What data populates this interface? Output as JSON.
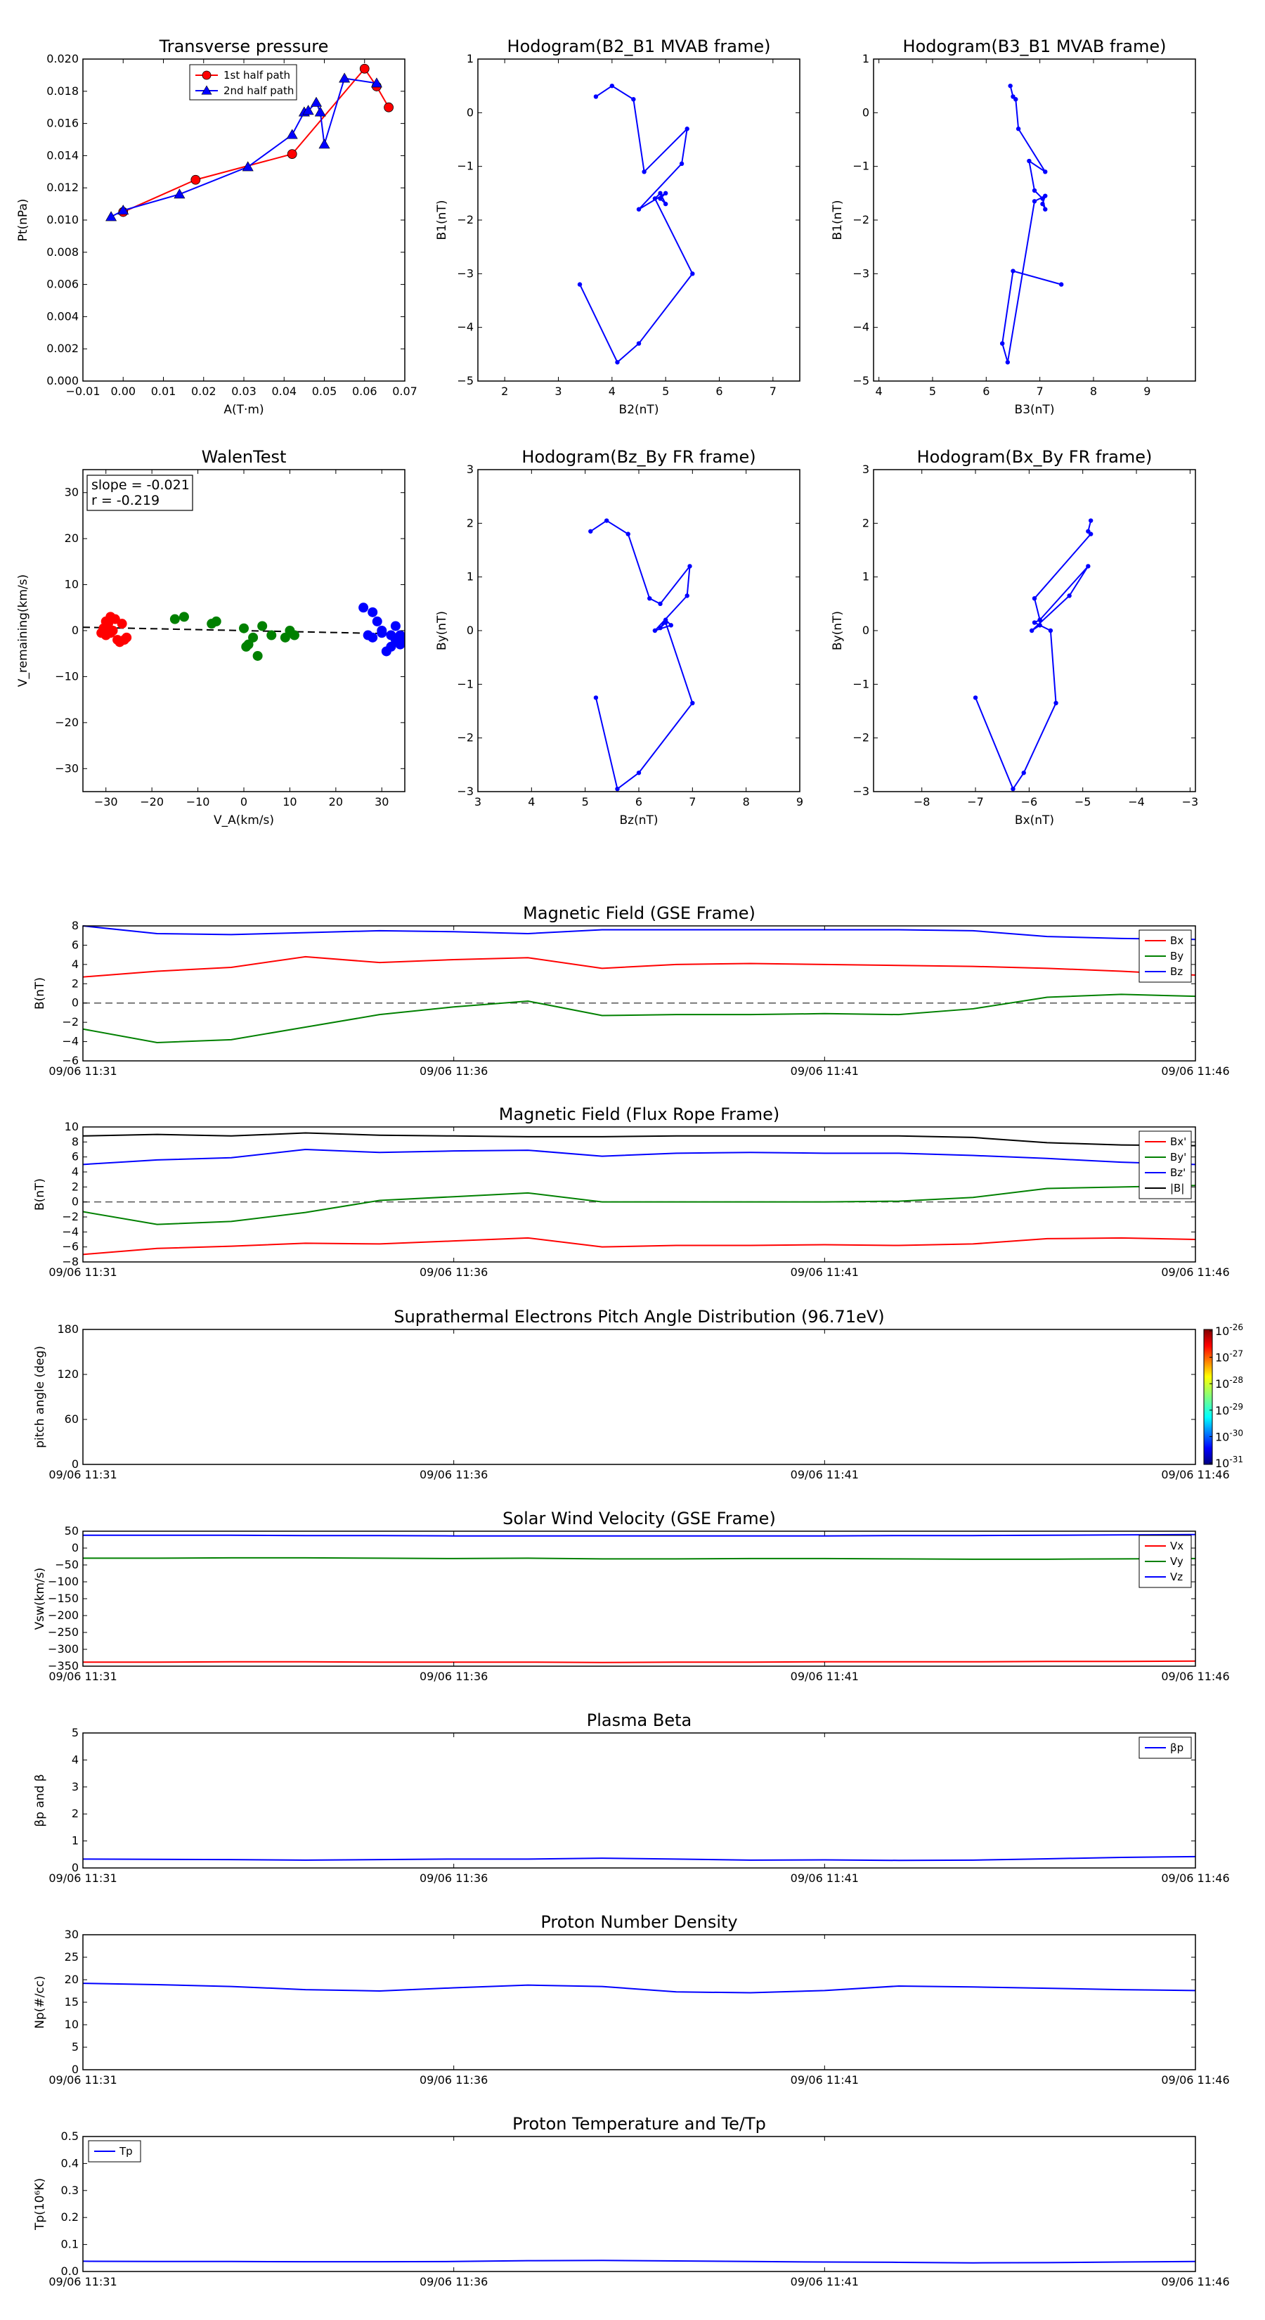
{
  "colors": {
    "red": "#ff0000",
    "green": "#008000",
    "blue": "#0000ff",
    "black": "#000000",
    "dark_red": "#cc0000",
    "dark_blue": "#0000aa",
    "navy": "#00008b"
  },
  "chart_data": [
    {
      "type": "line",
      "title": "Transverse pressure",
      "xlabel": "A(T·m)",
      "ylabel": "Pt(nPa)",
      "xlim": [
        -0.01,
        0.07
      ],
      "ylim": [
        0.0,
        0.02
      ],
      "xticks": [
        "−0.01",
        "0.00",
        "0.01",
        "0.02",
        "0.03",
        "0.04",
        "0.05",
        "0.06",
        "0.07"
      ],
      "yticks": [
        "0.000",
        "0.002",
        "0.004",
        "0.006",
        "0.008",
        "0.010",
        "0.012",
        "0.014",
        "0.016",
        "0.018",
        "0.020"
      ],
      "legend_placement": "top-center",
      "series": [
        {
          "name": "1st half path",
          "color": "red",
          "marker": "circle",
          "x": [
            0.0,
            0.018,
            0.042,
            0.06,
            0.063,
            0.066
          ],
          "y": [
            0.0105,
            0.0125,
            0.0141,
            0.0194,
            0.0183,
            0.017
          ]
        },
        {
          "name": "2nd half path",
          "color": "blue",
          "marker": "triangle",
          "x": [
            -0.003,
            0.0,
            0.014,
            0.031,
            0.042,
            0.045,
            0.046,
            0.048,
            0.049,
            0.05,
            0.055,
            0.063
          ],
          "y": [
            0.0102,
            0.0106,
            0.0116,
            0.0133,
            0.0153,
            0.0167,
            0.0168,
            0.0173,
            0.0167,
            0.0147,
            0.0188,
            0.0185
          ]
        }
      ]
    },
    {
      "type": "line",
      "title": "Hodogram(B2_B1 MVAB frame)",
      "xlabel": "B2(nT)",
      "ylabel": "B1(nT)",
      "xlim": [
        1.5,
        7.5
      ],
      "ylim": [
        -5,
        1
      ],
      "xticks": [
        "2",
        "3",
        "4",
        "5",
        "6",
        "7"
      ],
      "yticks": [
        "−5",
        "−4",
        "−3",
        "−2",
        "−1",
        "0",
        "1"
      ],
      "series": [
        {
          "color": "blue",
          "marker": "dot",
          "x": [
            3.4,
            4.1,
            4.5,
            5.5,
            4.8,
            4.9,
            5.0,
            4.9,
            5.0,
            4.5,
            5.3,
            5.4,
            4.6,
            4.4,
            4.0,
            3.7
          ],
          "y": [
            -3.2,
            -4.65,
            -4.3,
            -3.0,
            -1.6,
            -1.5,
            -1.7,
            -1.6,
            -1.5,
            -1.8,
            -0.95,
            -0.3,
            -1.1,
            0.25,
            0.5,
            0.3
          ]
        }
      ]
    },
    {
      "type": "line",
      "title": "Hodogram(B3_B1 MVAB frame)",
      "xlabel": "B3(nT)",
      "ylabel": "B1(nT)",
      "xlim": [
        3.9,
        9.9
      ],
      "ylim": [
        -5,
        1
      ],
      "xticks": [
        "4",
        "5",
        "6",
        "7",
        "8",
        "9"
      ],
      "yticks": [
        "−5",
        "−4",
        "−3",
        "−2",
        "−1",
        "0",
        "1"
      ],
      "series": [
        {
          "color": "blue",
          "marker": "dot",
          "x": [
            7.4,
            6.5,
            6.3,
            6.4,
            6.9,
            7.1,
            7.05,
            7.1,
            7.05,
            6.9,
            6.8,
            7.1,
            6.6,
            6.55,
            6.5,
            6.45
          ],
          "y": [
            -3.2,
            -2.95,
            -4.3,
            -4.65,
            -1.65,
            -1.55,
            -1.7,
            -1.8,
            -1.6,
            -1.45,
            -0.9,
            -1.1,
            -0.3,
            0.25,
            0.3,
            0.5
          ]
        }
      ]
    },
    {
      "type": "scatter",
      "title": "WalenTest",
      "xlabel": "V_A(km/s)",
      "ylabel": "V_remaining(km/s)",
      "xlim": [
        -35,
        35
      ],
      "ylim": [
        -35,
        35
      ],
      "xticks": [
        "−30",
        "−20",
        "−10",
        "0",
        "10",
        "20",
        "30"
      ],
      "yticks": [
        "−30",
        "−20",
        "−10",
        "0",
        "10",
        "20",
        "30"
      ],
      "annotations": [
        "slope = -0.021",
        "r = -0.219"
      ],
      "fit_line": {
        "slope": -0.021,
        "intercept": 0.0,
        "style": "dashed"
      },
      "series": [
        {
          "color": "red",
          "x": [
            -31,
            -30.5,
            -30,
            -29.5,
            -29,
            -28.5,
            -30,
            -29,
            -28,
            -27.5,
            -27,
            -26.5,
            -26,
            -25.5,
            -30.5,
            -29.5
          ],
          "y": [
            -0.5,
            0.5,
            -1.0,
            1.5,
            3.0,
            0.0,
            2.0,
            -0.5,
            2.5,
            -2.0,
            -2.5,
            1.5,
            -2.0,
            -1.5,
            0.5,
            -0.5
          ]
        },
        {
          "color": "green",
          "x": [
            -15,
            -13,
            -7,
            -6,
            0,
            0.5,
            1,
            2,
            3,
            4,
            6,
            9,
            10,
            11
          ],
          "y": [
            2.5,
            3.0,
            1.5,
            2.0,
            0.5,
            -3.5,
            -3.0,
            -1.5,
            -5.5,
            1.0,
            -1.0,
            -1.5,
            0.0,
            -1.0
          ]
        },
        {
          "color": "blue",
          "x": [
            26,
            27,
            28,
            29,
            30,
            31,
            32,
            33,
            34,
            35,
            28,
            30,
            32,
            34,
            33
          ],
          "y": [
            5.0,
            -1.0,
            4.0,
            2.0,
            0.0,
            -4.5,
            -1.0,
            1.0,
            -3.0,
            -2.5,
            -1.5,
            -0.5,
            -3.5,
            -1.0,
            -2.0
          ]
        }
      ]
    },
    {
      "type": "line",
      "title": "Hodogram(Bz_By FR frame)",
      "xlabel": "Bz(nT)",
      "ylabel": "By(nT)",
      "xlim": [
        3,
        9
      ],
      "ylim": [
        -3,
        3
      ],
      "xticks": [
        "3",
        "4",
        "5",
        "6",
        "7",
        "8",
        "9"
      ],
      "yticks": [
        "−3",
        "−2",
        "−1",
        "0",
        "1",
        "2",
        "3"
      ],
      "series": [
        {
          "color": "blue",
          "marker": "dot",
          "x": [
            5.2,
            5.6,
            6.0,
            7.0,
            6.5,
            6.4,
            6.5,
            6.6,
            6.3,
            6.9,
            6.95,
            6.4,
            6.2,
            5.8,
            5.4,
            5.1
          ],
          "y": [
            -1.25,
            -2.95,
            -2.65,
            -1.35,
            0.15,
            0.05,
            0.2,
            0.1,
            0.0,
            0.65,
            1.2,
            0.5,
            0.6,
            1.8,
            2.05,
            1.85
          ]
        }
      ]
    },
    {
      "type": "line",
      "title": "Hodogram(Bx_By FR frame)",
      "xlabel": "Bx(nT)",
      "ylabel": "By(nT)",
      "xlim": [
        -8.9,
        -2.9
      ],
      "ylim": [
        -3,
        3
      ],
      "xticks": [
        "−8",
        "−7",
        "−6",
        "−5",
        "−4",
        "−3"
      ],
      "yticks": [
        "−3",
        "−2",
        "−1",
        "0",
        "1",
        "2",
        "3"
      ],
      "series": [
        {
          "color": "blue",
          "marker": "dot",
          "x": [
            -7.0,
            -6.3,
            -6.1,
            -5.5,
            -5.6,
            -5.9,
            -5.8,
            -5.8,
            -5.95,
            -5.25,
            -4.9,
            -5.8,
            -5.9,
            -4.85,
            -4.9,
            -4.85
          ],
          "y": [
            -1.25,
            -2.95,
            -2.65,
            -1.35,
            0.0,
            0.15,
            0.2,
            0.1,
            0.0,
            0.65,
            1.2,
            0.2,
            0.6,
            1.8,
            1.85,
            2.05
          ]
        }
      ]
    },
    {
      "type": "line",
      "title": "Magnetic Field (GSE Frame)",
      "ylabel": "B(nT)",
      "ylim": [
        -6,
        8
      ],
      "yticks": [
        "−6",
        "−4",
        "−2",
        "0",
        "2",
        "4",
        "6",
        "8"
      ],
      "xticks": [
        "09/06 11:31",
        "09/06 11:36",
        "09/06 11:41",
        "09/06 11:46"
      ],
      "x": [
        0,
        1,
        2,
        3,
        4,
        5,
        6,
        7,
        8,
        9,
        10,
        11,
        12,
        13,
        14,
        15
      ],
      "zero_line": "dashed",
      "legend_placement": "top-right",
      "series": [
        {
          "name": "Bx",
          "color": "red",
          "values": [
            2.7,
            3.3,
            3.7,
            4.8,
            4.2,
            4.5,
            4.7,
            3.6,
            4.0,
            4.1,
            4.0,
            3.9,
            3.8,
            3.6,
            3.3,
            2.9
          ]
        },
        {
          "name": "By",
          "color": "green",
          "values": [
            -2.7,
            -4.1,
            -3.8,
            -2.5,
            -1.2,
            -0.4,
            0.2,
            -1.3,
            -1.2,
            -1.2,
            -1.1,
            -1.2,
            -0.6,
            0.6,
            0.9,
            0.7
          ]
        },
        {
          "name": "Bz",
          "color": "blue",
          "values": [
            8.0,
            7.2,
            7.1,
            7.3,
            7.5,
            7.4,
            7.2,
            7.6,
            7.6,
            7.6,
            7.6,
            7.6,
            7.5,
            6.9,
            6.7,
            6.6
          ]
        }
      ]
    },
    {
      "type": "line",
      "title": "Magnetic Field (Flux Rope Frame)",
      "ylabel": "B(nT)",
      "ylim": [
        -8,
        10
      ],
      "yticks": [
        "−8",
        "−6",
        "−4",
        "−2",
        "0",
        "2",
        "4",
        "6",
        "8",
        "10"
      ],
      "xticks": [
        "09/06 11:31",
        "09/06 11:36",
        "09/06 11:41",
        "09/06 11:46"
      ],
      "x": [
        0,
        1,
        2,
        3,
        4,
        5,
        6,
        7,
        8,
        9,
        10,
        11,
        12,
        13,
        14,
        15
      ],
      "zero_line": "dashed",
      "legend_placement": "top-right",
      "series": [
        {
          "name": "Bx'",
          "color": "red",
          "values": [
            -7.0,
            -6.2,
            -5.9,
            -5.5,
            -5.6,
            -5.2,
            -4.8,
            -6.0,
            -5.8,
            -5.8,
            -5.7,
            -5.8,
            -5.6,
            -4.9,
            -4.8,
            -5.0
          ]
        },
        {
          "name": "By'",
          "color": "green",
          "values": [
            -1.3,
            -3.0,
            -2.6,
            -1.4,
            0.2,
            0.7,
            1.2,
            0.0,
            0.0,
            0.0,
            0.0,
            0.1,
            0.6,
            1.8,
            2.0,
            2.2
          ]
        },
        {
          "name": "Bz'",
          "color": "blue",
          "values": [
            5.0,
            5.6,
            5.9,
            7.0,
            6.6,
            6.8,
            6.9,
            6.1,
            6.5,
            6.6,
            6.5,
            6.5,
            6.2,
            5.8,
            5.3,
            5.0
          ]
        },
        {
          "name": "|B|",
          "color": "black",
          "values": [
            8.8,
            9.0,
            8.8,
            9.2,
            8.9,
            8.8,
            8.7,
            8.7,
            8.8,
            8.8,
            8.8,
            8.8,
            8.6,
            7.9,
            7.6,
            7.5
          ]
        }
      ]
    },
    {
      "type": "heatmap",
      "title": "Suprathermal Electrons Pitch Angle Distribution (96.71eV)",
      "ylabel": "pitch angle (deg)",
      "ylim": [
        0,
        180
      ],
      "yticks": [
        "0",
        "60",
        "120",
        "180"
      ],
      "xticks": [
        "09/06 11:31",
        "09/06 11:36",
        "09/06 11:41",
        "09/06 11:46"
      ],
      "colorbar": {
        "base": "10",
        "exponents": [
          "-26",
          "-27",
          "-28",
          "-29",
          "-30",
          "-31"
        ]
      }
    },
    {
      "type": "line",
      "title": "Solar Wind Velocity (GSE Frame)",
      "ylabel": "Vsw(km/s)",
      "ylim": [
        -350,
        50
      ],
      "yticks": [
        "−350",
        "−300",
        "−250",
        "−200",
        "−150",
        "−100",
        "−50",
        "0",
        "50"
      ],
      "xticks": [
        "09/06 11:31",
        "09/06 11:36",
        "09/06 11:41",
        "09/06 11:46"
      ],
      "x": [
        0,
        1,
        2,
        3,
        4,
        5,
        6,
        7,
        8,
        9,
        10,
        11,
        12,
        13,
        14,
        15
      ],
      "legend_placement": "top-right",
      "series": [
        {
          "name": "Vx",
          "color": "red",
          "values": [
            -338,
            -338,
            -337,
            -337,
            -338,
            -338,
            -338,
            -339,
            -338,
            -338,
            -337,
            -337,
            -337,
            -336,
            -336,
            -335
          ]
        },
        {
          "name": "Vy",
          "color": "green",
          "values": [
            -30,
            -30,
            -29,
            -29,
            -30,
            -31,
            -30,
            -32,
            -32,
            -31,
            -31,
            -32,
            -33,
            -33,
            -32,
            -31
          ]
        },
        {
          "name": "Vz",
          "color": "blue",
          "values": [
            38,
            38,
            38,
            37,
            37,
            36,
            36,
            36,
            36,
            36,
            36,
            37,
            37,
            38,
            39,
            40
          ]
        }
      ]
    },
    {
      "type": "line",
      "title": "Plasma Beta",
      "ylabel": "βp and β",
      "ylim": [
        0,
        5
      ],
      "yticks": [
        "0",
        "1",
        "2",
        "3",
        "4",
        "5"
      ],
      "xticks": [
        "09/06 11:31",
        "09/06 11:36",
        "09/06 11:41",
        "09/06 11:46"
      ],
      "x": [
        0,
        1,
        2,
        3,
        4,
        5,
        6,
        7,
        8,
        9,
        10,
        11,
        12,
        13,
        14,
        15
      ],
      "legend_placement": "top-right",
      "series": [
        {
          "name": "βp",
          "color": "blue",
          "values": [
            0.33,
            0.32,
            0.31,
            0.29,
            0.31,
            0.33,
            0.33,
            0.36,
            0.33,
            0.29,
            0.3,
            0.28,
            0.29,
            0.34,
            0.39,
            0.42
          ]
        }
      ]
    },
    {
      "type": "line",
      "title": "Proton Number Density",
      "ylabel": "Np(#/cc)",
      "ylim": [
        0,
        30
      ],
      "yticks": [
        "0",
        "5",
        "10",
        "15",
        "20",
        "25",
        "30"
      ],
      "xticks": [
        "09/06 11:31",
        "09/06 11:36",
        "09/06 11:41",
        "09/06 11:46"
      ],
      "x": [
        0,
        1,
        2,
        3,
        4,
        5,
        6,
        7,
        8,
        9,
        10,
        11,
        12,
        13,
        14,
        15
      ],
      "series": [
        {
          "color": "blue",
          "values": [
            19.2,
            18.9,
            18.5,
            17.8,
            17.5,
            18.2,
            18.8,
            18.5,
            17.3,
            17.1,
            17.6,
            18.6,
            18.4,
            18.1,
            17.8,
            17.6
          ]
        }
      ]
    },
    {
      "type": "line",
      "title": "Proton Temperature and Te/Tp",
      "ylabel": "Tp(10⁶K)",
      "ylim": [
        0,
        0.5
      ],
      "yticks": [
        "0.0",
        "0.1",
        "0.2",
        "0.3",
        "0.4",
        "0.5"
      ],
      "xticks": [
        "09/06 11:31",
        "09/06 11:36",
        "09/06 11:41",
        "09/06 11:46"
      ],
      "x": [
        0,
        1,
        2,
        3,
        4,
        5,
        6,
        7,
        8,
        9,
        10,
        11,
        12,
        13,
        14,
        15
      ],
      "legend_placement": "top-left",
      "series": [
        {
          "name": "Tp",
          "color": "blue",
          "values": [
            0.038,
            0.037,
            0.037,
            0.036,
            0.036,
            0.037,
            0.04,
            0.041,
            0.039,
            0.037,
            0.035,
            0.034,
            0.032,
            0.033,
            0.035,
            0.037
          ]
        }
      ]
    }
  ]
}
